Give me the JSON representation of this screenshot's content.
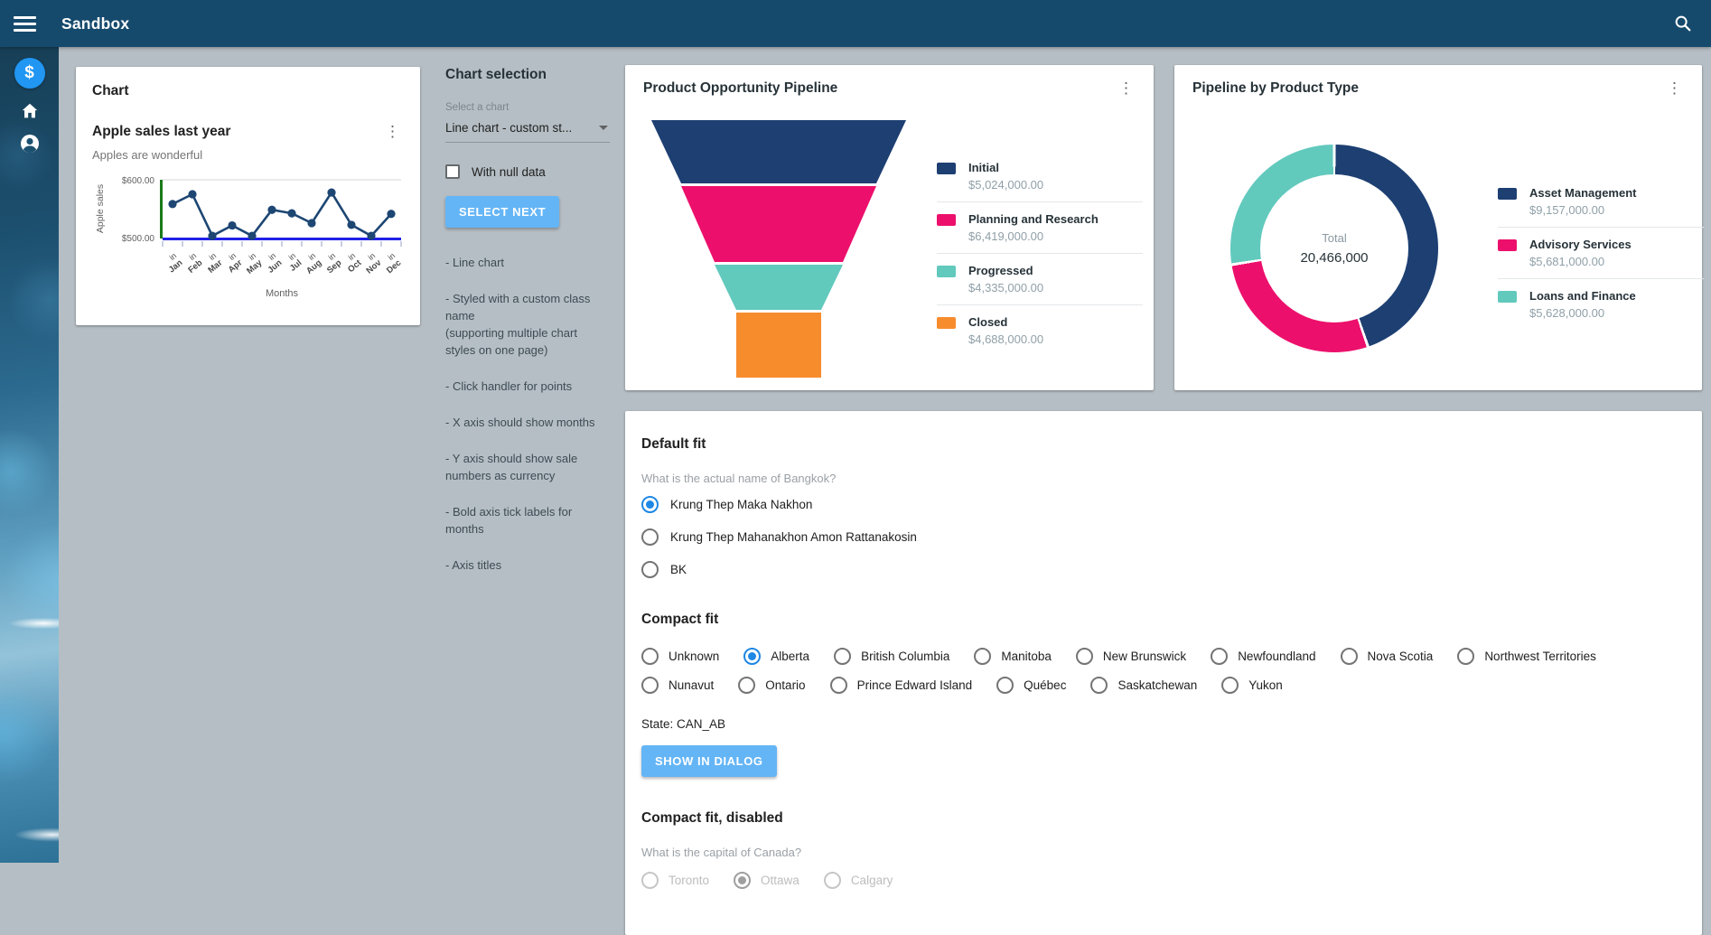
{
  "topbar": {
    "title": "Sandbox"
  },
  "sidebar": {
    "items": [
      {
        "icon": "monetization-icon"
      },
      {
        "icon": "home-icon"
      },
      {
        "icon": "account-icon"
      }
    ]
  },
  "chart_card": {
    "header": "Chart",
    "title": "Apple sales last year",
    "subtitle": "Apples are wonderful"
  },
  "selection_panel": {
    "title": "Chart selection",
    "select_label": "Select a chart",
    "select_value": "Line chart - custom st...",
    "checkbox_label": "With null data",
    "checkbox_checked": false,
    "button_label": "SELECT NEXT",
    "notes": [
      "- Line chart",
      "- Styled with a custom class name\n(supporting multiple chart styles on one page)",
      "- Click handler for points",
      "- X axis should show months",
      "- Y axis should show sale numbers as currency",
      "- Bold axis tick labels for months",
      "- Axis titles"
    ]
  },
  "chart_data": [
    {
      "type": "line",
      "title": "Apple sales last year",
      "x": [
        "Jan",
        "Feb",
        "Mar",
        "Apr",
        "May",
        "Jun",
        "Jul",
        "Aug",
        "Sep",
        "Oct",
        "Nov",
        "Dec"
      ],
      "x_tick_prefix": "in",
      "series": [
        {
          "name": "Apple sales",
          "values": [
            558,
            575,
            503,
            521,
            503,
            548,
            542,
            525,
            578,
            522,
            503,
            541
          ]
        }
      ],
      "xlabel": "Months",
      "ylabel": "Apple sales",
      "ylim": [
        500,
        600
      ],
      "yticks": [
        "$500.00",
        "$600.00"
      ],
      "grid": "top-line-only",
      "line_color": "#1d4673",
      "x_axis_color": "#2121e8",
      "y_axis_color": "#1a7a1a"
    },
    {
      "type": "funnel",
      "title": "Product Opportunity Pipeline",
      "categories": [
        "Initial",
        "Planning and Research",
        "Progressed",
        "Closed"
      ],
      "values": [
        5024000,
        6419000,
        4335000,
        4688000
      ],
      "value_labels": [
        "$5,024,000.00",
        "$6,419,000.00",
        "$4,335,000.00",
        "$4,688,000.00"
      ],
      "colors": [
        "#1d3f72",
        "#ec106c",
        "#62c9bd",
        "#f78c2d"
      ],
      "legend_position": "right"
    },
    {
      "type": "donut",
      "title": "Pipeline by Product Type",
      "categories": [
        "Asset Management",
        "Advisory Services",
        "Loans and Finance"
      ],
      "values": [
        9157000,
        5681000,
        5628000
      ],
      "value_labels": [
        "$9,157,000.00",
        "$5,681,000.00",
        "$5,628,000.00"
      ],
      "colors": [
        "#1d3f72",
        "#ec106c",
        "#62c9bd"
      ],
      "center_label": "Total",
      "center_value": "20,466,000",
      "legend_position": "right"
    }
  ],
  "form_card": {
    "default_fit": {
      "heading": "Default fit",
      "question": "What is the actual name of Bangkok?",
      "options": [
        "Krung Thep Maka Nakhon",
        "Krung Thep Mahanakhon Amon Rattanakosin",
        "BK"
      ],
      "selected": 0,
      "disabled": false
    },
    "compact_fit": {
      "heading": "Compact fit",
      "options": [
        "Unknown",
        "Alberta",
        "British Columbia",
        "Manitoba",
        "New Brunswick",
        "Newfoundland",
        "Nova Scotia",
        "Northwest Territories",
        "Nunavut",
        "Ontario",
        "Prince Edward Island",
        "Québec",
        "Saskatchewan",
        "Yukon"
      ],
      "selected": 1,
      "disabled": false,
      "state_label": "State: CAN_AB",
      "button_label": "SHOW IN DIALOG"
    },
    "compact_fit_disabled": {
      "heading": "Compact fit, disabled",
      "question": "What is the capital of Canada?",
      "options": [
        "Toronto",
        "Ottawa",
        "Calgary"
      ],
      "selected": 1,
      "disabled": true
    }
  },
  "colors": {
    "topbar": "#164a6d",
    "accent_button": "#64b5f6",
    "radio_selected": "#1e88e5",
    "background": "#b5bec4"
  }
}
